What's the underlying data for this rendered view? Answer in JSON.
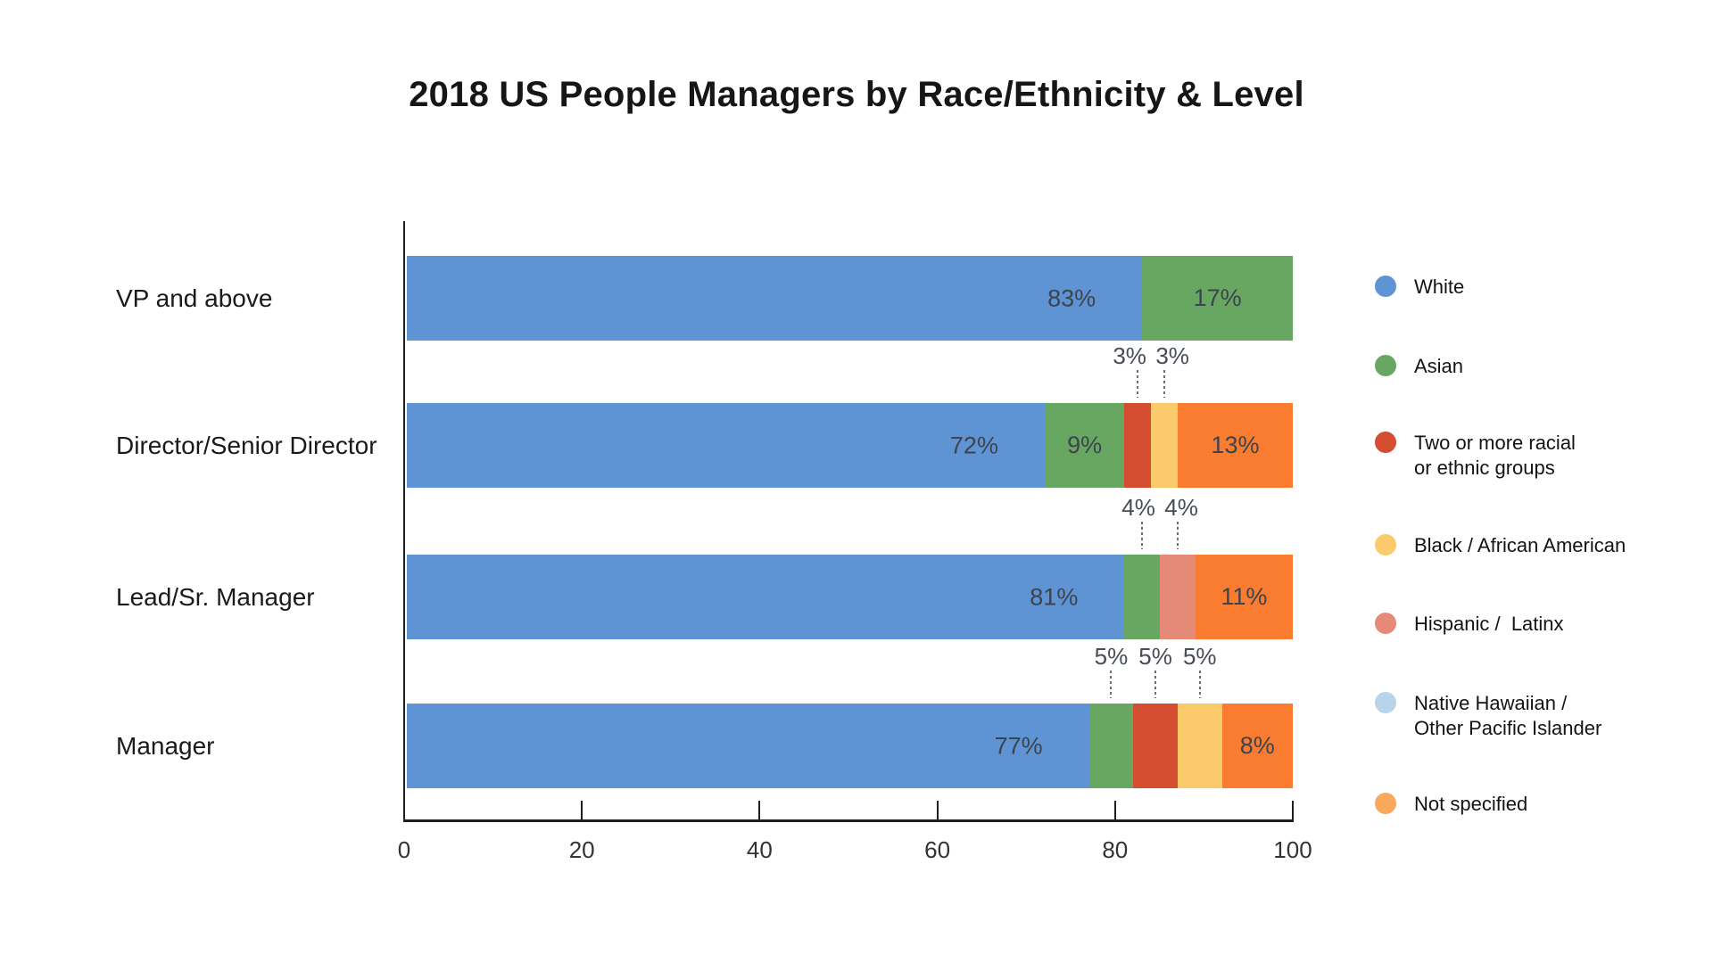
{
  "title": "2018 US People Managers by Race/Ethnicity & Level",
  "legend": [
    {
      "label": "White",
      "lines": [
        "White"
      ],
      "color": "#5e93d4"
    },
    {
      "label": "Asian",
      "lines": [
        "Asian"
      ],
      "color": "#68a761"
    },
    {
      "label": "Two or more racial or ethnic groups",
      "lines": [
        "Two or more racial",
        "or ethnic groups"
      ],
      "color": "#d54d30"
    },
    {
      "label": "Black / African American",
      "lines": [
        "Black / African American"
      ],
      "color": "#fbca6b"
    },
    {
      "label": "Hispanic /  Latinx",
      "lines": [
        "Hispanic /  Latinx"
      ],
      "color": "#e58a76"
    },
    {
      "label": "Native Hawaiian / Other Pacific Islander",
      "lines": [
        "Native Hawaiian /",
        "Other Pacific Islander"
      ],
      "color": "#b7d4ea"
    },
    {
      "label": "Not specified",
      "lines": [
        "Not specified"
      ],
      "color": "#f8a95c"
    }
  ],
  "chart_data": {
    "type": "bar",
    "variant": "horizontal-stacked",
    "title": "2018 US People Managers by Race/Ethnicity & Level",
    "categories": [
      "VP and above",
      "Director/Senior Director",
      "Lead/Sr. Manager",
      "Manager"
    ],
    "series": [
      {
        "name": "White",
        "values": [
          83,
          72,
          81,
          77
        ]
      },
      {
        "name": "Asian",
        "values": [
          17,
          9,
          4,
          5
        ]
      },
      {
        "name": "Two or more racial or ethnic groups",
        "values": [
          0,
          3,
          0,
          5
        ]
      },
      {
        "name": "Black / African American",
        "values": [
          0,
          3,
          0,
          5
        ]
      },
      {
        "name": "Hispanic /  Latinx",
        "values": [
          0,
          0,
          4,
          0
        ]
      },
      {
        "name": "Native Hawaiian / Other Pacific Islander",
        "values": [
          0,
          0,
          0,
          0
        ]
      },
      {
        "name": "Not specified",
        "values": [
          0,
          13,
          11,
          8
        ]
      }
    ],
    "groups": [
      {
        "name": "White",
        "color": "#5e93d4"
      },
      {
        "name": "Asian",
        "color": "#68a761"
      },
      {
        "name": "Two or more racial or ethnic groups",
        "color": "#d54d30"
      },
      {
        "name": "Black / African American",
        "color": "#fbca6b"
      },
      {
        "name": "Hispanic /  Latinx",
        "color": "#e58a76"
      },
      {
        "name": "Native Hawaiian / Other Pacific Islander",
        "color": "#b7d4ea"
      },
      {
        "name": "Not specified",
        "color": "#f8a95c",
        "bar_color": "#f97c30"
      }
    ],
    "rows": [
      {
        "category": "VP and above",
        "segments": [
          {
            "group": "White",
            "value": 83,
            "label": "83%",
            "placement": "inside-right"
          },
          {
            "group": "Asian",
            "value": 17,
            "label": "17%",
            "placement": "inside-center"
          }
        ]
      },
      {
        "category": "Director/Senior Director",
        "segments": [
          {
            "group": "White",
            "value": 72,
            "label": "72%",
            "placement": "inside-right"
          },
          {
            "group": "Asian",
            "value": 9,
            "label": "9%",
            "placement": "inside-center"
          },
          {
            "group": "Two or more racial or ethnic groups",
            "value": 3,
            "label": "3%",
            "placement": "callout"
          },
          {
            "group": "Black / African American",
            "value": 3,
            "label": "3%",
            "placement": "callout"
          },
          {
            "group": "Not specified",
            "value": 13,
            "label": "13%",
            "placement": "inside-center"
          }
        ]
      },
      {
        "category": "Lead/Sr. Manager",
        "segments": [
          {
            "group": "White",
            "value": 81,
            "label": "81%",
            "placement": "inside-right"
          },
          {
            "group": "Asian",
            "value": 4,
            "label": "4%",
            "placement": "callout"
          },
          {
            "group": "Hispanic /  Latinx",
            "value": 4,
            "label": "4%",
            "placement": "callout"
          },
          {
            "group": "Not specified",
            "value": 11,
            "label": "11%",
            "placement": "inside-center"
          }
        ]
      },
      {
        "category": "Manager",
        "segments": [
          {
            "group": "White",
            "value": 77,
            "label": "77%",
            "placement": "inside-right"
          },
          {
            "group": "Asian",
            "value": 5,
            "label": "5%",
            "placement": "callout"
          },
          {
            "group": "Two or more racial or ethnic groups",
            "value": 5,
            "label": "5%",
            "placement": "callout"
          },
          {
            "group": "Black / African American",
            "value": 5,
            "label": "5%",
            "placement": "callout"
          },
          {
            "group": "Not specified",
            "value": 8,
            "label": "8%",
            "placement": "inside-center"
          }
        ]
      }
    ],
    "x_axis": {
      "min": 0,
      "max": 100,
      "ticks": [
        0,
        20,
        40,
        60,
        80,
        100
      ]
    },
    "grid": false,
    "legend_position": "right"
  }
}
